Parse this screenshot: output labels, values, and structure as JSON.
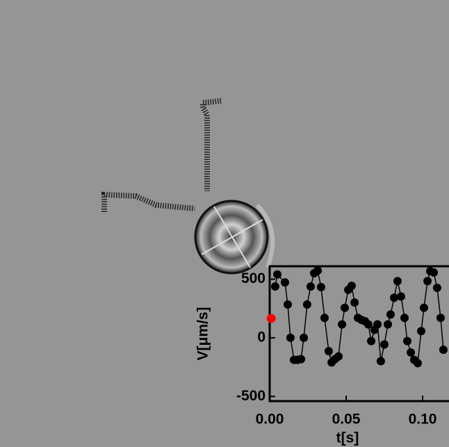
{
  "chart_data": {
    "type": "line",
    "x_label": "t[s]",
    "y_label": "V[μm/s]",
    "x": [
      0.0036,
      0.005,
      0.01,
      0.0118,
      0.0136,
      0.0159,
      0.0182,
      0.0205,
      0.0223,
      0.0245,
      0.0268,
      0.0291,
      0.0314,
      0.0336,
      0.0359,
      0.0386,
      0.0405,
      0.0427,
      0.045,
      0.0473,
      0.0491,
      0.0514,
      0.0536,
      0.0555,
      0.0577,
      0.06,
      0.0623,
      0.0645,
      0.0664,
      0.0686,
      0.0705,
      0.0727,
      0.075,
      0.0773,
      0.0791,
      0.0814,
      0.0836,
      0.0859,
      0.0882,
      0.09,
      0.0923,
      0.0945,
      0.0968,
      0.0991,
      0.1009,
      0.1032,
      0.105,
      0.1073,
      0.1095,
      0.1118,
      0.1136
    ],
    "series": [
      {
        "color": "#000000",
        "values": [
          437,
          540,
          472,
          284,
          0,
          -188,
          -188,
          -182,
          0,
          284,
          437,
          551,
          574,
          432,
          170,
          -114,
          -210,
          -182,
          -159,
          114,
          256,
          409,
          443,
          301,
          170,
          153,
          142,
          114,
          -28,
          68,
          114,
          -199,
          -57,
          114,
          199,
          341,
          483,
          352,
          170,
          -28,
          -125,
          -188,
          -216,
          57,
          256,
          483,
          568,
          557,
          426,
          170,
          -102
        ]
      }
    ],
    "marker": {
      "x": 0.001,
      "y": 165,
      "color": "#ff0000"
    },
    "xlim": [
      0,
      0.117
    ],
    "ylim": [
      -540,
      610
    ],
    "xticks": [
      {
        "value": 0,
        "label": "0.00"
      },
      {
        "value": 0.05,
        "label": "0.05"
      },
      {
        "value": 0.1,
        "label": "0.10"
      }
    ],
    "yticks": [
      -500,
      0,
      500
    ]
  }
}
